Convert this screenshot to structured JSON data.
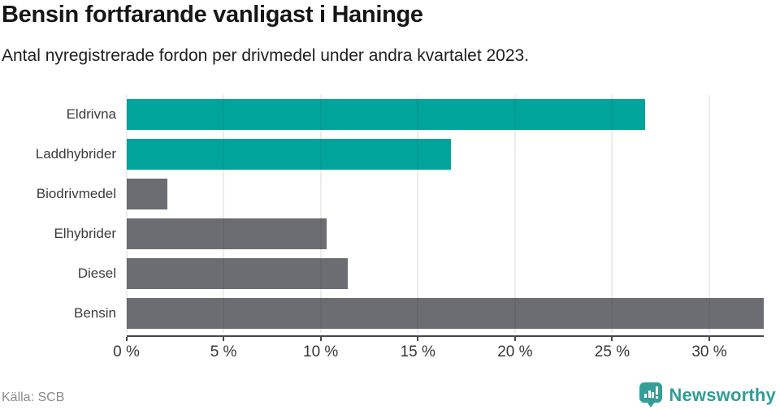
{
  "header": {
    "title": "Bensin fortfarande vanligast i Haninge",
    "subtitle": "Antal nyregistrerade fordon per drivmedel under andra kvartalet 2023."
  },
  "chart_data": {
    "type": "bar",
    "orientation": "horizontal",
    "title": "Bensin fortfarande vanligast i Haninge",
    "subtitle": "Antal nyregistrerade fordon per drivmedel under andra kvartalet 2023.",
    "categories": [
      "Eldrivna",
      "Laddhybrider",
      "Biodrivmedel",
      "Elhybrider",
      "Diesel",
      "Bensin"
    ],
    "values": [
      26.7,
      16.7,
      2.1,
      10.3,
      11.4,
      32.8
    ],
    "unit": "%",
    "xlim": [
      0,
      32.8
    ],
    "xticks": [
      0,
      5,
      10,
      15,
      20,
      25,
      30
    ],
    "xtick_labels": [
      "0 %",
      "5 %",
      "10 %",
      "15 %",
      "20 %",
      "25 %",
      "30 %"
    ],
    "grid": true,
    "legend_position": "none",
    "bar_colors": [
      "#00a49b",
      "#00a49b",
      "#6c6d72",
      "#6c6d72",
      "#6c6d72",
      "#6c6d72"
    ]
  },
  "footer": {
    "source": "Källa: SCB",
    "brand": "Newsworthy"
  },
  "colors": {
    "accent_teal": "#00a49b",
    "bar_gray": "#6c6d72",
    "logo_teal": "#359e98",
    "axis": "#47474c"
  },
  "icons": {
    "brand_logo": "newsworthy-bar-chart-speech-bubble-icon"
  }
}
